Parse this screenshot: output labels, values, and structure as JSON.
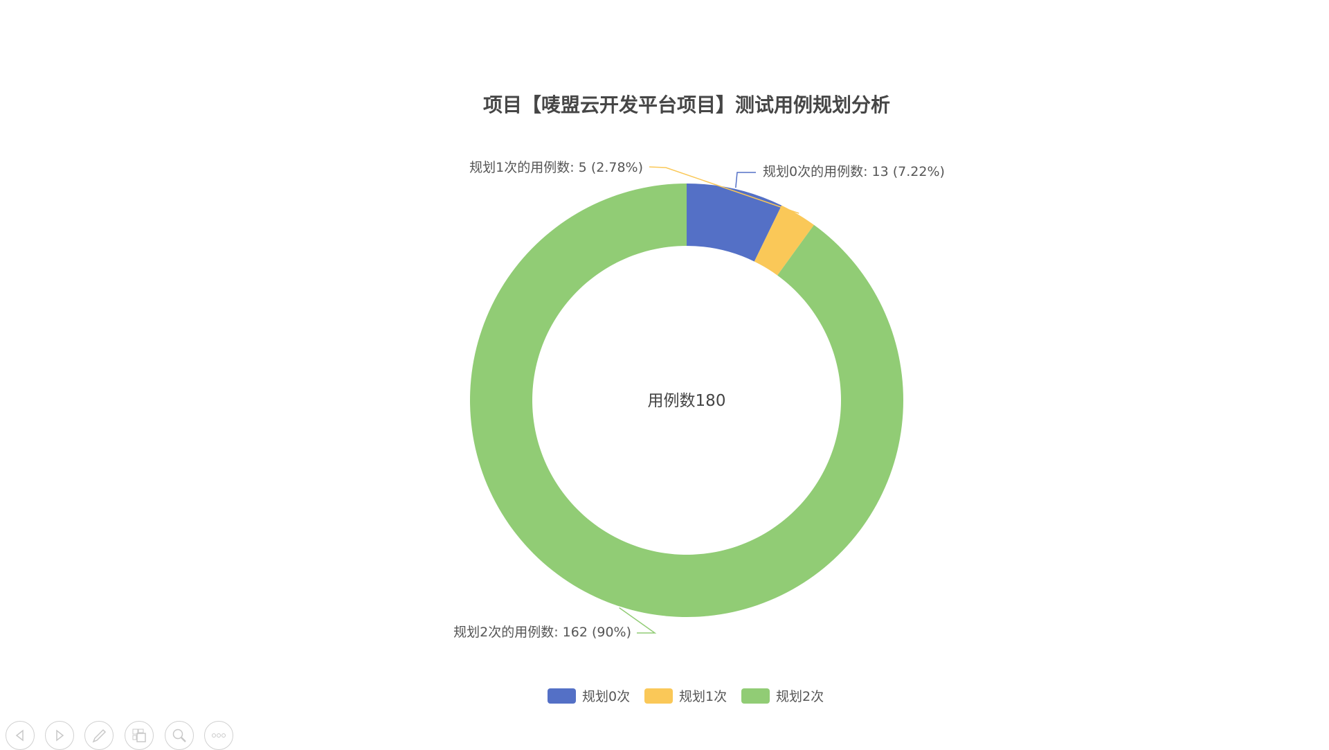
{
  "chart_data": {
    "type": "pie",
    "variant": "donut",
    "title": "项目【唛盟云开发平台项目】测试用例规划分析",
    "center_label": "用例数180",
    "legend_position": "bottom",
    "series": [
      {
        "name": "规划0次",
        "value": 13,
        "percent": "7.22%",
        "label": "规划0次的用例数: 13  (7.22%)",
        "color": "#5470c6"
      },
      {
        "name": "规划1次",
        "value": 5,
        "percent": "2.78%",
        "label": "规划1次的用例数: 5  (2.78%)",
        "color": "#fac858"
      },
      {
        "name": "规划2次",
        "value": 162,
        "percent": "90%",
        "label": "规划2次的用例数: 162  (90%)",
        "color": "#91cc75"
      }
    ]
  },
  "toolbar": {
    "icons": [
      "previous-icon",
      "next-icon",
      "pen-icon",
      "slides-icon",
      "zoom-icon",
      "more-icon"
    ]
  }
}
